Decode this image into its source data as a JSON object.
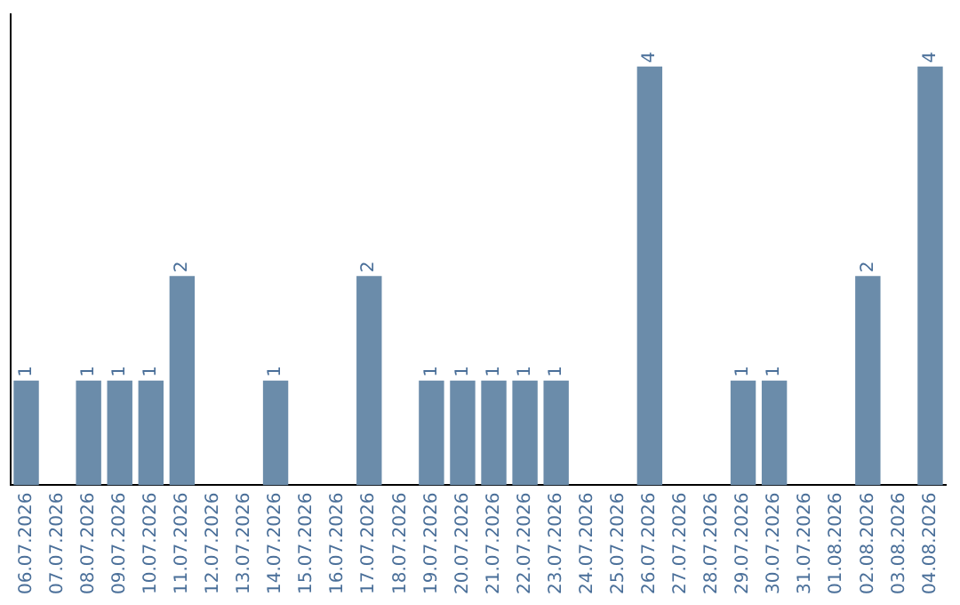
{
  "chart_data": {
    "type": "bar",
    "categories": [
      "06.07.2026",
      "07.07.2026",
      "08.07.2026",
      "09.07.2026",
      "10.07.2026",
      "11.07.2026",
      "12.07.2026",
      "13.07.2026",
      "14.07.2026",
      "15.07.2026",
      "16.07.2026",
      "17.07.2026",
      "18.07.2026",
      "19.07.2026",
      "20.07.2026",
      "21.07.2026",
      "22.07.2026",
      "23.07.2026",
      "24.07.2026",
      "25.07.2026",
      "26.07.2026",
      "27.07.2026",
      "28.07.2026",
      "29.07.2026",
      "30.07.2026",
      "31.07.2026",
      "01.08.2026",
      "02.08.2026",
      "03.08.2026",
      "04.08.2026"
    ],
    "values": [
      1,
      0,
      1,
      1,
      1,
      2,
      0,
      0,
      1,
      0,
      0,
      2,
      0,
      1,
      1,
      1,
      1,
      1,
      0,
      0,
      4,
      0,
      0,
      1,
      1,
      0,
      0,
      2,
      0,
      4
    ],
    "value_labels": [
      "1",
      null,
      "1",
      "1",
      "1",
      "2",
      null,
      null,
      "1",
      null,
      null,
      "2",
      null,
      "1",
      "1",
      "1",
      "1",
      "1",
      null,
      null,
      "4",
      null,
      null,
      "1",
      "1",
      null,
      null,
      "2",
      null,
      "4"
    ],
    "color": "#6b8caa",
    "grid": false,
    "legend": false,
    "tick_labels": "x"
  }
}
